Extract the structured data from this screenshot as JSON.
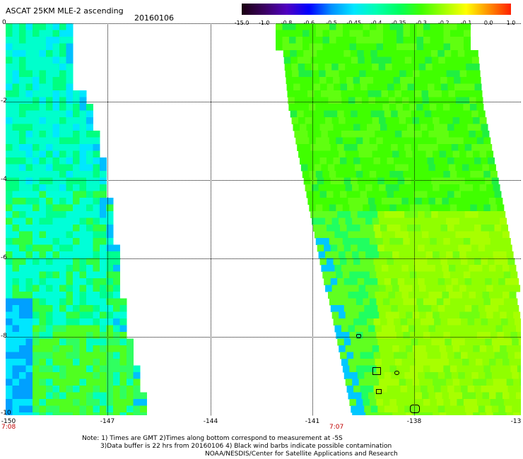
{
  "header": {
    "title": "ASCAT 25KM MLE-2 ascending",
    "date": "20160106"
  },
  "colorbar": {
    "labels": [
      "-15.0",
      "-1.0",
      "-0.8",
      "-0.6",
      "-0.5",
      "-0.45",
      "-0.4",
      "-0.35",
      "-0.3",
      "-0.2",
      "-0.1",
      "0.0",
      "1.0"
    ],
    "colors": [
      "#1a0010",
      "#3a0060",
      "#5000c0",
      "#0000ff",
      "#0090ff",
      "#00e6ff",
      "#00ffb0",
      "#00ff60",
      "#40ff00",
      "#a0ff00",
      "#ffff00",
      "#ff9000",
      "#ff2000"
    ]
  },
  "axes": {
    "x_ticks": [
      "-150",
      "-147",
      "-144",
      "-141",
      "-138",
      "-13"
    ],
    "y_ticks": [
      "0",
      "-2",
      "-4",
      "-6",
      "-8",
      "-10"
    ],
    "start_time": "7:08",
    "end_time": "7:07"
  },
  "notes": {
    "line1": "Note: 1) Times are GMT 2)Times along bottom correspond to measurement at -5S",
    "line2": "3)Data buffer is 22 hrs from 20160106 4) Black wind barbs indicate possible contamination",
    "line3": "NOAA/NESDIS/Center for Satellite Applications and Research"
  }
}
